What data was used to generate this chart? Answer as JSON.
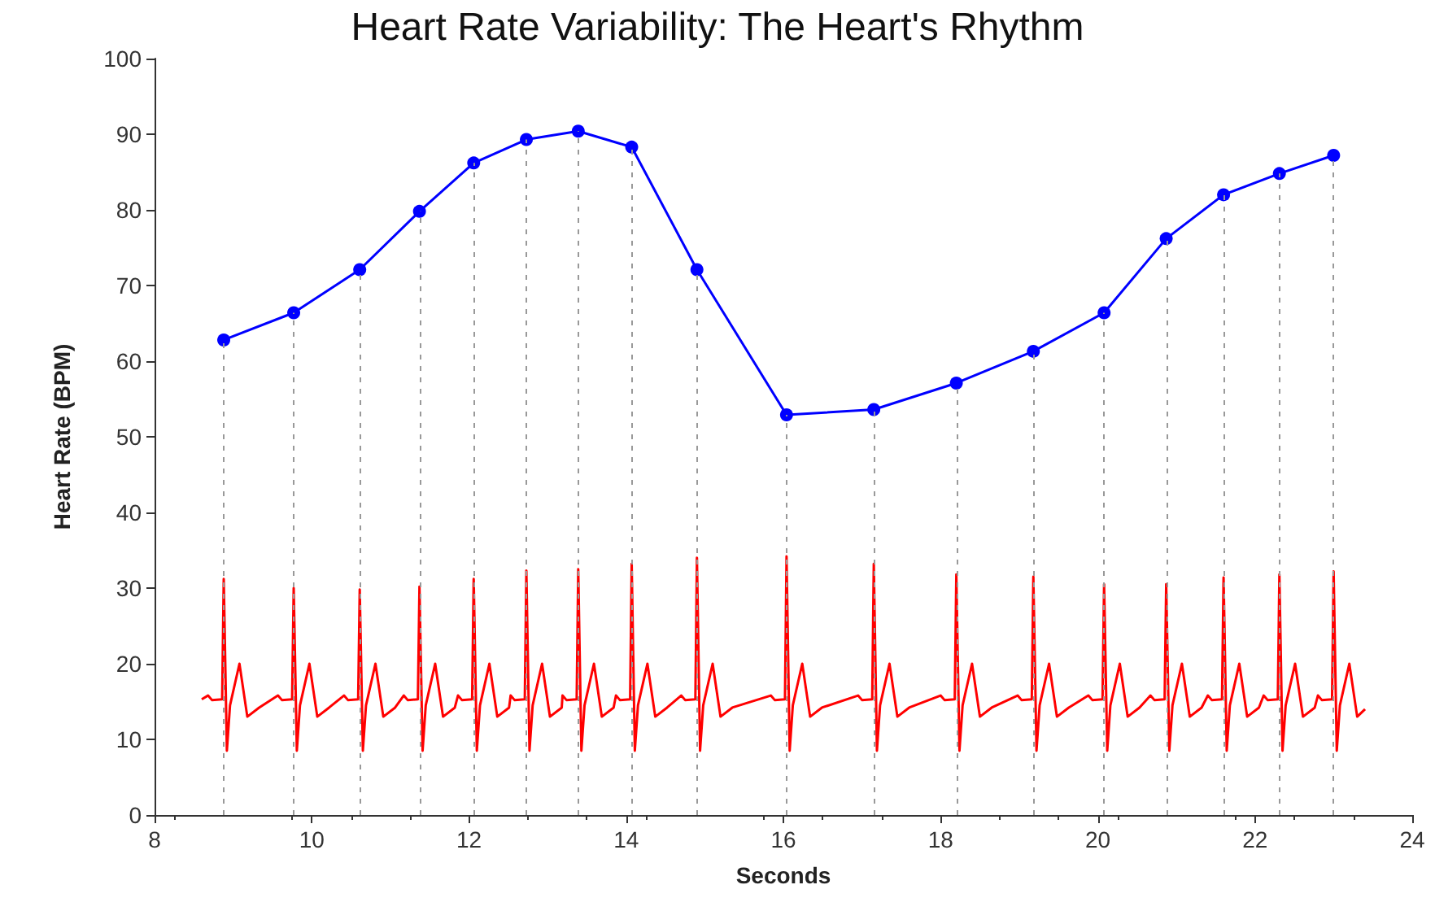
{
  "chart_data": {
    "type": "line",
    "title": "Heart Rate Variability: The Heart's Rhythm",
    "xlabel": "Seconds",
    "ylabel": "Heart Rate (BPM)",
    "xlim": [
      8,
      24
    ],
    "xticks": [
      8,
      10,
      12,
      14,
      16,
      18,
      20,
      22,
      24
    ],
    "ylim": [
      0,
      100
    ],
    "yticks": [
      0,
      10,
      20,
      30,
      40,
      50,
      60,
      70,
      80,
      90,
      100
    ],
    "grid": false,
    "series": [
      {
        "color": "#ff0000",
        "marker": "none",
        "x": [
          8.6,
          8.68,
          8.73,
          8.86,
          8.88,
          8.92,
          8.96,
          9.08,
          9.18,
          9.33,
          9.57,
          9.62,
          9.75,
          9.77,
          9.81,
          9.85,
          9.97,
          10.07,
          10.22,
          10.41,
          10.46,
          10.59,
          10.61,
          10.65,
          10.69,
          10.81,
          10.91,
          11.06,
          11.17,
          11.22,
          11.35,
          11.37,
          11.41,
          11.45,
          11.57,
          11.67,
          11.82,
          11.86,
          11.91,
          12.04,
          12.06,
          12.1,
          12.14,
          12.26,
          12.36,
          12.51,
          12.53,
          12.58,
          12.71,
          12.73,
          12.77,
          12.81,
          12.93,
          13.03,
          13.18,
          13.19,
          13.24,
          13.37,
          13.39,
          13.43,
          13.47,
          13.59,
          13.69,
          13.84,
          13.87,
          13.92,
          14.05,
          14.07,
          14.11,
          14.15,
          14.27,
          14.37,
          14.52,
          14.7,
          14.75,
          14.88,
          14.9,
          14.94,
          14.98,
          15.1,
          15.2,
          15.35,
          15.84,
          15.89,
          16.02,
          16.04,
          16.08,
          16.12,
          16.24,
          16.34,
          16.49,
          16.95,
          17,
          17.13,
          17.15,
          17.19,
          17.23,
          17.35,
          17.45,
          17.6,
          18,
          18.05,
          18.18,
          18.2,
          18.24,
          18.28,
          18.4,
          18.5,
          18.65,
          18.98,
          19.03,
          19.16,
          19.18,
          19.22,
          19.26,
          19.38,
          19.48,
          19.63,
          19.88,
          19.93,
          20.06,
          20.08,
          20.12,
          20.16,
          20.28,
          20.38,
          20.53,
          20.67,
          20.72,
          20.85,
          20.87,
          20.91,
          20.95,
          21.07,
          21.17,
          21.32,
          21.4,
          21.45,
          21.58,
          21.6,
          21.64,
          21.68,
          21.8,
          21.9,
          22.05,
          22.11,
          22.16,
          22.29,
          22.31,
          22.35,
          22.39,
          22.51,
          22.61,
          22.76,
          22.8,
          22.85,
          22.98,
          23,
          23.04,
          23.08,
          23.2,
          23.3,
          23.4
        ],
        "values": [
          15.3,
          15.8,
          15.2,
          15.3,
          31.2,
          8.5,
          14.5,
          20,
          13,
          14.2,
          15.8,
          15.2,
          15.3,
          30,
          8.5,
          14.5,
          20,
          13,
          14.2,
          15.8,
          15.2,
          15.3,
          29.8,
          8.5,
          14.5,
          20,
          13,
          14.2,
          15.8,
          15.2,
          15.3,
          30.2,
          8.5,
          14.5,
          20,
          13,
          14.2,
          15.8,
          15.2,
          15.3,
          31.2,
          8.5,
          14.5,
          20,
          13,
          14.2,
          15.8,
          15.2,
          15.3,
          32.3,
          8.5,
          14.5,
          20,
          13,
          14.2,
          15.8,
          15.2,
          15.3,
          32.5,
          8.5,
          14.5,
          20,
          13,
          14.2,
          15.8,
          15.2,
          15.3,
          33.2,
          8.5,
          14.5,
          20,
          13,
          14.2,
          15.8,
          15.2,
          15.3,
          34,
          8.5,
          14.5,
          20,
          13,
          14.2,
          15.8,
          15.2,
          15.3,
          34.2,
          8.5,
          14.5,
          20,
          13,
          14.2,
          15.8,
          15.2,
          15.3,
          33.2,
          8.5,
          14.5,
          20,
          13,
          14.2,
          15.8,
          15.2,
          15.3,
          31.8,
          8.5,
          14.5,
          20,
          13,
          14.2,
          15.8,
          15.2,
          15.3,
          31.5,
          8.5,
          14.5,
          20,
          13,
          14.2,
          15.8,
          15.2,
          15.3,
          30.5,
          8.5,
          14.5,
          20,
          13,
          14.2,
          15.8,
          15.2,
          15.3,
          30.5,
          8.5,
          14.5,
          20,
          13,
          14.2,
          15.8,
          15.2,
          15.3,
          31.4,
          8.5,
          14.5,
          20,
          13,
          14.2,
          15.8,
          15.2,
          15.3,
          31.8,
          8.5,
          14.5,
          20,
          13,
          14.2,
          15.8,
          15.2,
          15.3,
          32.2,
          8.5,
          14.5,
          20,
          13,
          14
        ]
      },
      {
        "color": "#0000ff",
        "marker": "circle",
        "x": [
          8.88,
          9.77,
          10.61,
          11.37,
          12.06,
          12.73,
          13.39,
          14.07,
          14.9,
          16.04,
          17.15,
          18.2,
          19.18,
          20.08,
          20.87,
          21.6,
          22.31,
          23
        ],
        "values": [
          62.8,
          66.4,
          72.1,
          79.8,
          86.2,
          89.3,
          90.4,
          88.3,
          72.1,
          52.9,
          53.6,
          57.1,
          61.3,
          66.4,
          76.2,
          82,
          84.8,
          87.2
        ]
      }
    ],
    "ref_lines": [
      {
        "axis": "x",
        "value": 8.88,
        "color": "#999999",
        "line_style": "dashed"
      },
      {
        "axis": "x",
        "value": 9.77,
        "color": "#999999",
        "line_style": "dashed"
      },
      {
        "axis": "x",
        "value": 10.61,
        "color": "#999999",
        "line_style": "dashed"
      },
      {
        "axis": "x",
        "value": 11.37,
        "color": "#999999",
        "line_style": "dashed"
      },
      {
        "axis": "x",
        "value": 12.06,
        "color": "#999999",
        "line_style": "dashed"
      },
      {
        "axis": "x",
        "value": 12.73,
        "color": "#999999",
        "line_style": "dashed"
      },
      {
        "axis": "x",
        "value": 13.39,
        "color": "#999999",
        "line_style": "dashed"
      },
      {
        "axis": "x",
        "value": 14.07,
        "color": "#999999",
        "line_style": "dashed"
      },
      {
        "axis": "x",
        "value": 14.9,
        "color": "#999999",
        "line_style": "dashed"
      },
      {
        "axis": "x",
        "value": 16.04,
        "color": "#999999",
        "line_style": "dashed"
      },
      {
        "axis": "x",
        "value": 17.15,
        "color": "#999999",
        "line_style": "dashed"
      },
      {
        "axis": "x",
        "value": 18.2,
        "color": "#999999",
        "line_style": "dashed"
      },
      {
        "axis": "x",
        "value": 19.18,
        "color": "#999999",
        "line_style": "dashed"
      },
      {
        "axis": "x",
        "value": 20.08,
        "color": "#999999",
        "line_style": "dashed"
      },
      {
        "axis": "x",
        "value": 20.87,
        "color": "#999999",
        "line_style": "dashed"
      },
      {
        "axis": "x",
        "value": 21.6,
        "color": "#999999",
        "line_style": "dashed"
      },
      {
        "axis": "x",
        "value": 22.31,
        "color": "#999999",
        "line_style": "dashed"
      },
      {
        "axis": "x",
        "value": 23,
        "color": "#999999",
        "line_style": "dashed"
      }
    ]
  }
}
